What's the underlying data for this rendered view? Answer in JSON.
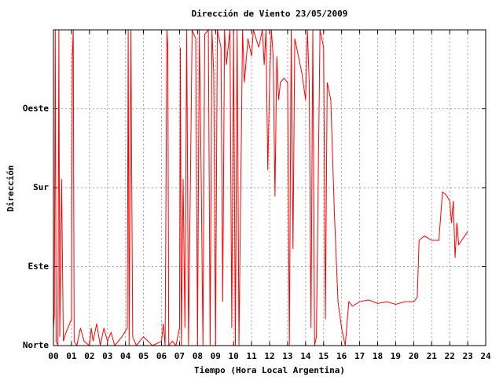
{
  "chart_data": {
    "type": "line",
    "title": "Dirección de Viento 23/05/2009",
    "xlabel": "Tiempo (Hora Local Argentina)",
    "ylabel": "Dirección",
    "xlim": [
      0,
      24
    ],
    "ylim": [
      0,
      360
    ],
    "xticks": [
      {
        "value": 0,
        "label": "00"
      },
      {
        "value": 1,
        "label": "01"
      },
      {
        "value": 2,
        "label": "02"
      },
      {
        "value": 3,
        "label": "03"
      },
      {
        "value": 4,
        "label": "04"
      },
      {
        "value": 5,
        "label": "05"
      },
      {
        "value": 6,
        "label": "06"
      },
      {
        "value": 7,
        "label": "07"
      },
      {
        "value": 8,
        "label": "08"
      },
      {
        "value": 9,
        "label": "09"
      },
      10,
      11,
      12,
      13,
      14,
      15,
      16,
      17,
      18,
      19,
      20,
      21,
      22,
      23,
      24
    ],
    "yticks": [
      {
        "value": 0,
        "label": "Norte"
      },
      {
        "value": 90,
        "label": "Este"
      },
      {
        "value": 180,
        "label": "Sur"
      },
      {
        "value": 270,
        "label": "Oeste"
      }
    ],
    "grid": true,
    "series": [
      {
        "color": "#ff0000",
        "x": [
          0.0,
          0.05,
          0.1,
          0.15,
          0.25,
          0.3,
          0.35,
          0.45,
          0.55,
          0.7,
          1.0,
          1.05,
          1.1,
          1.15,
          1.3,
          1.5,
          1.7,
          2.0,
          2.1,
          2.2,
          2.4,
          2.6,
          2.8,
          3.0,
          3.2,
          3.4,
          3.8,
          4.1,
          4.15,
          4.2,
          4.3,
          4.35,
          4.4,
          4.6,
          5.0,
          5.5,
          6.0,
          6.1,
          6.2,
          6.3,
          6.35,
          6.4,
          6.6,
          6.8,
          7.0,
          7.05,
          7.1,
          7.2,
          7.3,
          7.4,
          7.5,
          7.7,
          7.9,
          8.0,
          8.1,
          8.2,
          8.3,
          8.4,
          8.6,
          8.7,
          8.8,
          8.9,
          9.0,
          9.1,
          9.3,
          9.4,
          9.5,
          9.6,
          9.8,
          9.9,
          10.0,
          10.1,
          10.2,
          10.3,
          10.5,
          10.6,
          10.8,
          11.0,
          11.1,
          11.4,
          11.6,
          11.7,
          11.8,
          11.9,
          12.0,
          12.1,
          12.2,
          12.3,
          12.4,
          12.5,
          12.6,
          12.8,
          13.0,
          13.1,
          13.2,
          13.3,
          13.4,
          13.6,
          13.8,
          14.0,
          14.1,
          14.2,
          14.3,
          14.4,
          14.5,
          14.6,
          14.8,
          15.0,
          15.1,
          15.2,
          15.3,
          15.4,
          15.6,
          15.8,
          16.0,
          16.2,
          16.4,
          16.6,
          17.0,
          17.5,
          18.0,
          18.5,
          19.0,
          19.5,
          20.0,
          20.2,
          20.3,
          20.6,
          21.0,
          21.4,
          21.6,
          21.8,
          22.0,
          22.1,
          22.2,
          22.3,
          22.4,
          22.5,
          23.0
        ],
        "values": [
          20,
          35,
          360,
          5,
          0,
          360,
          10,
          190,
          5,
          15,
          30,
          330,
          360,
          5,
          0,
          20,
          5,
          0,
          20,
          5,
          25,
          0,
          20,
          5,
          15,
          0,
          10,
          20,
          360,
          0,
          360,
          180,
          10,
          0,
          10,
          0,
          5,
          25,
          0,
          360,
          340,
          0,
          5,
          0,
          20,
          340,
          0,
          190,
          20,
          360,
          0,
          360,
          350,
          0,
          360,
          200,
          0,
          355,
          360,
          0,
          360,
          310,
          0,
          360,
          340,
          50,
          360,
          320,
          360,
          20,
          360,
          0,
          360,
          0,
          360,
          300,
          350,
          330,
          360,
          340,
          360,
          320,
          360,
          200,
          300,
          360,
          330,
          170,
          330,
          280,
          300,
          305,
          300,
          0,
          360,
          110,
          350,
          330,
          310,
          280,
          360,
          300,
          20,
          360,
          0,
          10,
          360,
          340,
          30,
          300,
          290,
          280,
          150,
          50,
          20,
          0,
          50,
          45,
          50,
          52,
          48,
          50,
          47,
          50,
          50,
          55,
          120,
          125,
          120,
          120,
          175,
          172,
          165,
          140,
          165,
          100,
          140,
          115,
          130
        ]
      }
    ]
  }
}
